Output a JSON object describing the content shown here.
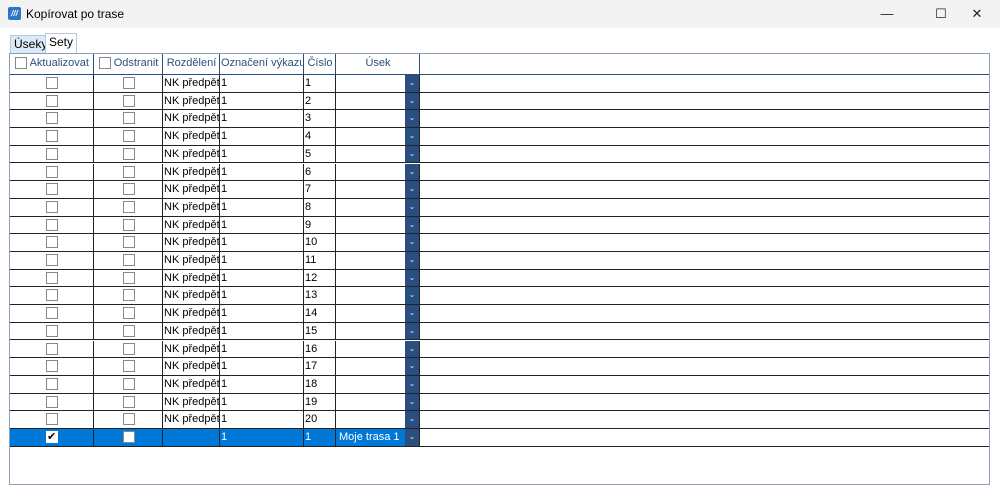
{
  "window": {
    "title": "Kopírovat po trase",
    "minimize": "—",
    "maximize": "☐",
    "close": "✕"
  },
  "tabs": [
    {
      "label": "Úseky",
      "active": false
    },
    {
      "label": "Sety",
      "active": true
    }
  ],
  "columns": [
    "Aktualizovat",
    "Odstranit",
    "Rozdělení",
    "Označení výkazu",
    "Číslo",
    "Úsek"
  ],
  "rows": [
    {
      "aktualizovat": false,
      "odstranit": false,
      "rozdeleni": "NK předpětí",
      "oznaceni": "1",
      "cislo": "1",
      "usek": ""
    },
    {
      "aktualizovat": false,
      "odstranit": false,
      "rozdeleni": "NK předpětí",
      "oznaceni": "1",
      "cislo": "2",
      "usek": ""
    },
    {
      "aktualizovat": false,
      "odstranit": false,
      "rozdeleni": "NK předpětí",
      "oznaceni": "1",
      "cislo": "3",
      "usek": ""
    },
    {
      "aktualizovat": false,
      "odstranit": false,
      "rozdeleni": "NK předpětí",
      "oznaceni": "1",
      "cislo": "4",
      "usek": ""
    },
    {
      "aktualizovat": false,
      "odstranit": false,
      "rozdeleni": "NK předpětí",
      "oznaceni": "1",
      "cislo": "5",
      "usek": ""
    },
    {
      "aktualizovat": false,
      "odstranit": false,
      "rozdeleni": "NK předpětí",
      "oznaceni": "1",
      "cislo": "6",
      "usek": ""
    },
    {
      "aktualizovat": false,
      "odstranit": false,
      "rozdeleni": "NK předpětí",
      "oznaceni": "1",
      "cislo": "7",
      "usek": ""
    },
    {
      "aktualizovat": false,
      "odstranit": false,
      "rozdeleni": "NK předpětí",
      "oznaceni": "1",
      "cislo": "8",
      "usek": ""
    },
    {
      "aktualizovat": false,
      "odstranit": false,
      "rozdeleni": "NK předpětí",
      "oznaceni": "1",
      "cislo": "9",
      "usek": ""
    },
    {
      "aktualizovat": false,
      "odstranit": false,
      "rozdeleni": "NK předpětí",
      "oznaceni": "1",
      "cislo": "10",
      "usek": ""
    },
    {
      "aktualizovat": false,
      "odstranit": false,
      "rozdeleni": "NK předpětí",
      "oznaceni": "1",
      "cislo": "11",
      "usek": ""
    },
    {
      "aktualizovat": false,
      "odstranit": false,
      "rozdeleni": "NK předpětí",
      "oznaceni": "1",
      "cislo": "12",
      "usek": ""
    },
    {
      "aktualizovat": false,
      "odstranit": false,
      "rozdeleni": "NK předpětí",
      "oznaceni": "1",
      "cislo": "13",
      "usek": ""
    },
    {
      "aktualizovat": false,
      "odstranit": false,
      "rozdeleni": "NK předpětí",
      "oznaceni": "1",
      "cislo": "14",
      "usek": ""
    },
    {
      "aktualizovat": false,
      "odstranit": false,
      "rozdeleni": "NK předpětí",
      "oznaceni": "1",
      "cislo": "15",
      "usek": ""
    },
    {
      "aktualizovat": false,
      "odstranit": false,
      "rozdeleni": "NK předpětí",
      "oznaceni": "1",
      "cislo": "16",
      "usek": ""
    },
    {
      "aktualizovat": false,
      "odstranit": false,
      "rozdeleni": "NK předpětí",
      "oznaceni": "1",
      "cislo": "17",
      "usek": ""
    },
    {
      "aktualizovat": false,
      "odstranit": false,
      "rozdeleni": "NK předpětí",
      "oznaceni": "1",
      "cislo": "18",
      "usek": ""
    },
    {
      "aktualizovat": false,
      "odstranit": false,
      "rozdeleni": "NK předpětí",
      "oznaceni": "1",
      "cislo": "19",
      "usek": ""
    },
    {
      "aktualizovat": false,
      "odstranit": false,
      "rozdeleni": "NK předpětí",
      "oznaceni": "1",
      "cislo": "20",
      "usek": ""
    },
    {
      "aktualizovat": true,
      "odstranit": false,
      "rozdeleni": "",
      "oznaceni": "1",
      "cislo": "1",
      "usek": "Moje trasa 1",
      "selected": true
    }
  ],
  "colors": {
    "accent": "#0078d7",
    "header": "#2a4f7f"
  }
}
